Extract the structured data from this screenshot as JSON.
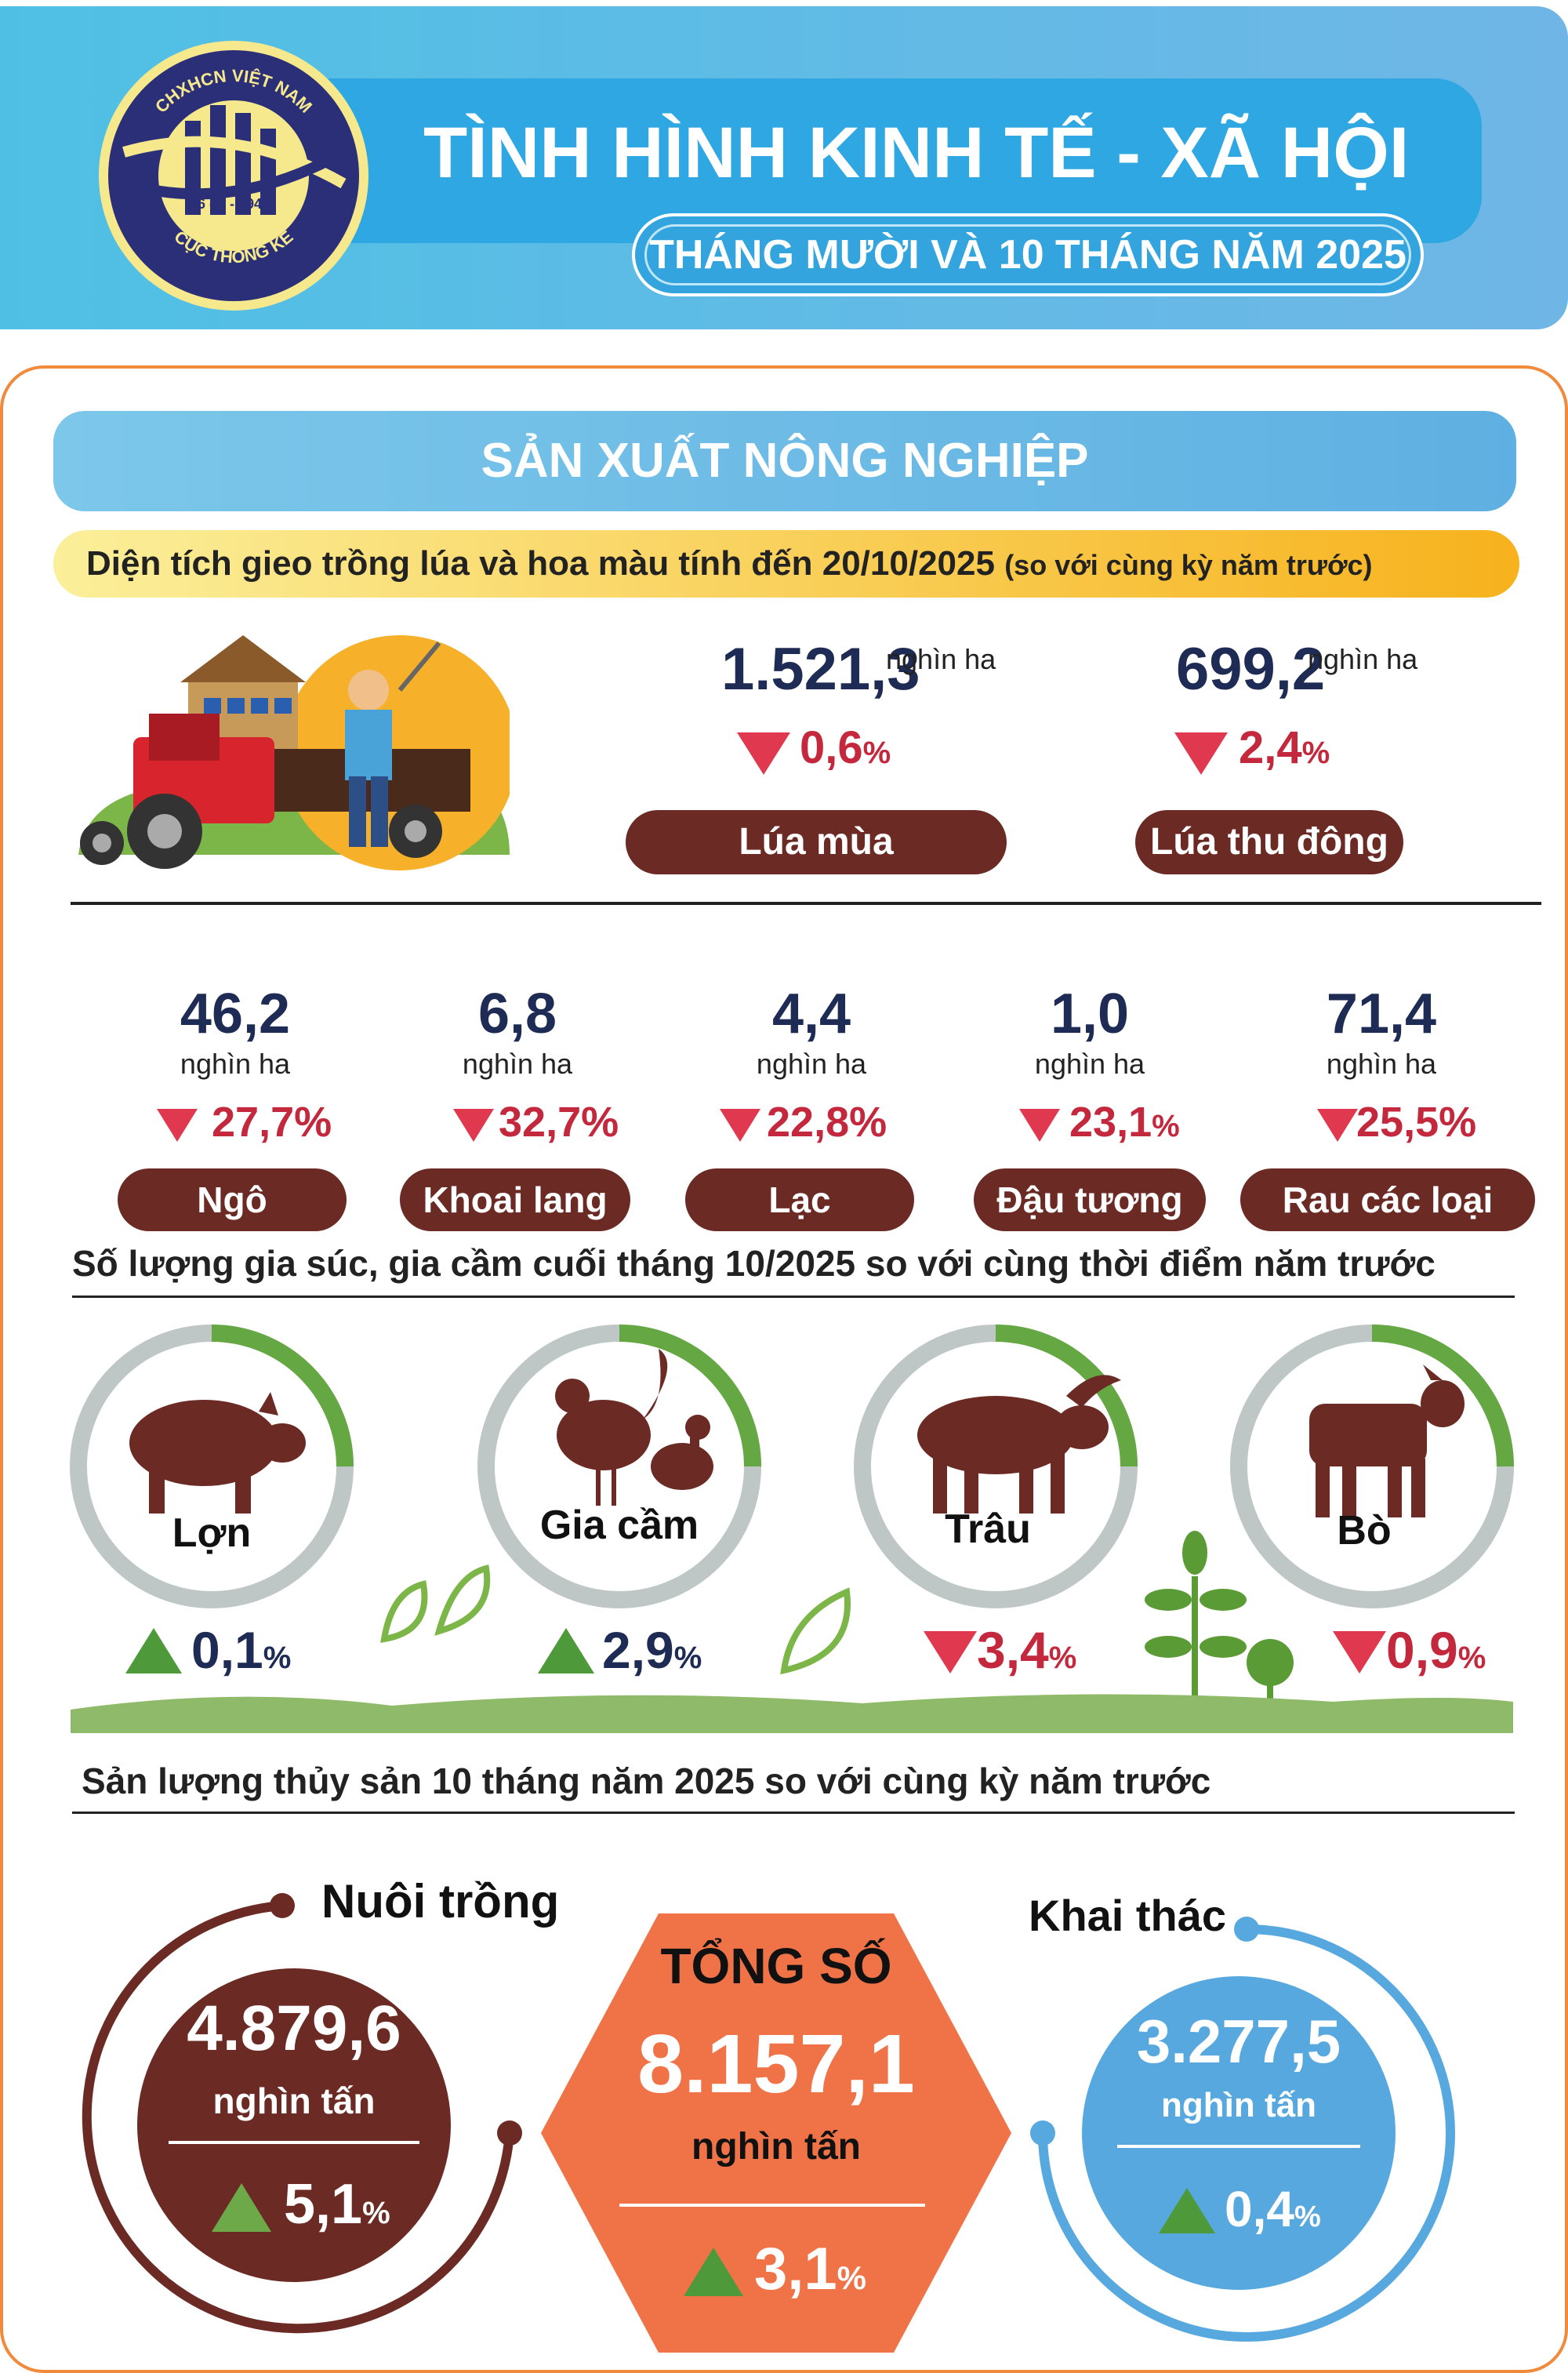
{
  "header": {
    "title": "TÌNH HÌNH KINH TẾ - XÃ HỘI",
    "subtitle": "THÁNG MƯỜI VÀ 10 THÁNG NĂM 2025",
    "logo": {
      "top_text": "CHXHCN VIỆT NAM",
      "date": "6 - 5 - 1946",
      "bottom_text": "CỤC THỐNG KÊ"
    }
  },
  "section": {
    "title": "SẢN XUẤT NÔNG NGHIỆP"
  },
  "area": {
    "title": "Diện tích gieo trồng lúa và hoa màu tính đến 20/10/2025",
    "title_note": "(so với cùng kỳ năm trước)",
    "rice": [
      {
        "value": "1.521,3",
        "unit": "nghìn ha",
        "change": "0,6",
        "pct": "%",
        "direction": "down",
        "label": "Lúa mùa"
      },
      {
        "value": "699,2",
        "unit": "nghìn ha",
        "change": "2,4",
        "pct": "%",
        "direction": "down",
        "label": "Lúa thu đông"
      }
    ],
    "crops": [
      {
        "value": "46,2",
        "unit": "nghìn ha",
        "change": "27,7%",
        "direction": "down",
        "label": "Ngô"
      },
      {
        "value": "6,8",
        "unit": "nghìn ha",
        "change": "32,7%",
        "direction": "down",
        "label": "Khoai lang"
      },
      {
        "value": "4,4",
        "unit": "nghìn ha",
        "change": "22,8%",
        "direction": "down",
        "label": "Lạc"
      },
      {
        "value": "1,0",
        "unit": "nghìn ha",
        "change": "23,1",
        "pct": "%",
        "direction": "down",
        "label": "Đậu tương"
      },
      {
        "value": "71,4",
        "unit": "nghìn ha",
        "change": "25,5%",
        "direction": "down",
        "label": "Rau các loại"
      }
    ]
  },
  "livestock": {
    "title": "Số lượng gia súc, gia cầm cuối tháng 10/2025 so với cùng thời điểm năm trước",
    "items": [
      {
        "label": "Lợn",
        "change": "0,1",
        "pct": "%",
        "direction": "up",
        "icon": "pig-icon"
      },
      {
        "label": "Gia cầm",
        "change": "2,9",
        "pct": "%",
        "direction": "up",
        "icon": "poultry-icon"
      },
      {
        "label": "Trâu",
        "change": "3,4",
        "pct": "%",
        "direction": "down",
        "icon": "buffalo-icon"
      },
      {
        "label": "Bò",
        "change": "0,9",
        "pct": "%",
        "direction": "down",
        "icon": "cow-icon"
      }
    ]
  },
  "fishery": {
    "title": "Sản lượng thủy sản 10 tháng năm 2025 so với cùng kỳ năm trước",
    "aquaculture": {
      "label": "Nuôi trồng",
      "value": "4.879,6",
      "unit": "nghìn tấn",
      "change": "5,1",
      "pct": "%",
      "direction": "up"
    },
    "total": {
      "label": "TỔNG SỐ",
      "value": "8.157,1",
      "unit": "nghìn tấn",
      "change": "3,1",
      "pct": "%",
      "direction": "up"
    },
    "catch": {
      "label": "Khai thác",
      "value": "3.277,5",
      "unit": "nghìn tấn",
      "change": "0,4",
      "pct": "%",
      "direction": "up"
    }
  },
  "colors": {
    "brown": "#6b2b24",
    "navy": "#1e2c55",
    "red": "#c4283c",
    "green": "#4e9a3a",
    "orange": "#f07348",
    "blue": "#57a8de"
  }
}
